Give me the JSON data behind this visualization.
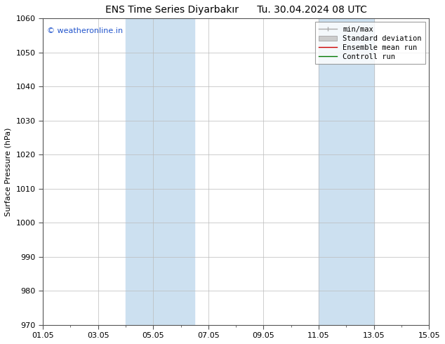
{
  "title": "ENS Time Series Diyarbakır      Tu. 30.04.2024 08 UTC",
  "ylabel": "Surface Pressure (hPa)",
  "watermark": "© weatheronline.in",
  "ylim": [
    970,
    1060
  ],
  "yticks": [
    970,
    980,
    990,
    1000,
    1010,
    1020,
    1030,
    1040,
    1050,
    1060
  ],
  "xlim": [
    0,
    14
  ],
  "xtick_positions": [
    0,
    2,
    4,
    6,
    8,
    10,
    12,
    14
  ],
  "xtick_labels": [
    "01.05",
    "03.05",
    "05.05",
    "07.05",
    "09.05",
    "11.05",
    "13.05",
    "15.05"
  ],
  "shaded_bands": [
    {
      "x_start": 3.0,
      "x_end": 5.5,
      "color": "#cce0f0"
    },
    {
      "x_start": 10.0,
      "x_end": 12.0,
      "color": "#cce0f0"
    }
  ],
  "legend_items": [
    {
      "label": "min/max",
      "color": "#aaaaaa",
      "type": "line_bars"
    },
    {
      "label": "Standard deviation",
      "color": "#cccccc",
      "type": "fill"
    },
    {
      "label": "Ensemble mean run",
      "color": "#cc0000",
      "type": "line"
    },
    {
      "label": "Controll run",
      "color": "#007700",
      "type": "line"
    }
  ],
  "bg_color": "#ffffff",
  "title_fontsize": 10,
  "label_fontsize": 8,
  "tick_fontsize": 8,
  "watermark_color": "#2255cc",
  "watermark_fontsize": 8,
  "legend_fontsize": 7.5,
  "grid_color": "#bbbbbb",
  "spine_color": "#555555",
  "font_family": "monospace"
}
